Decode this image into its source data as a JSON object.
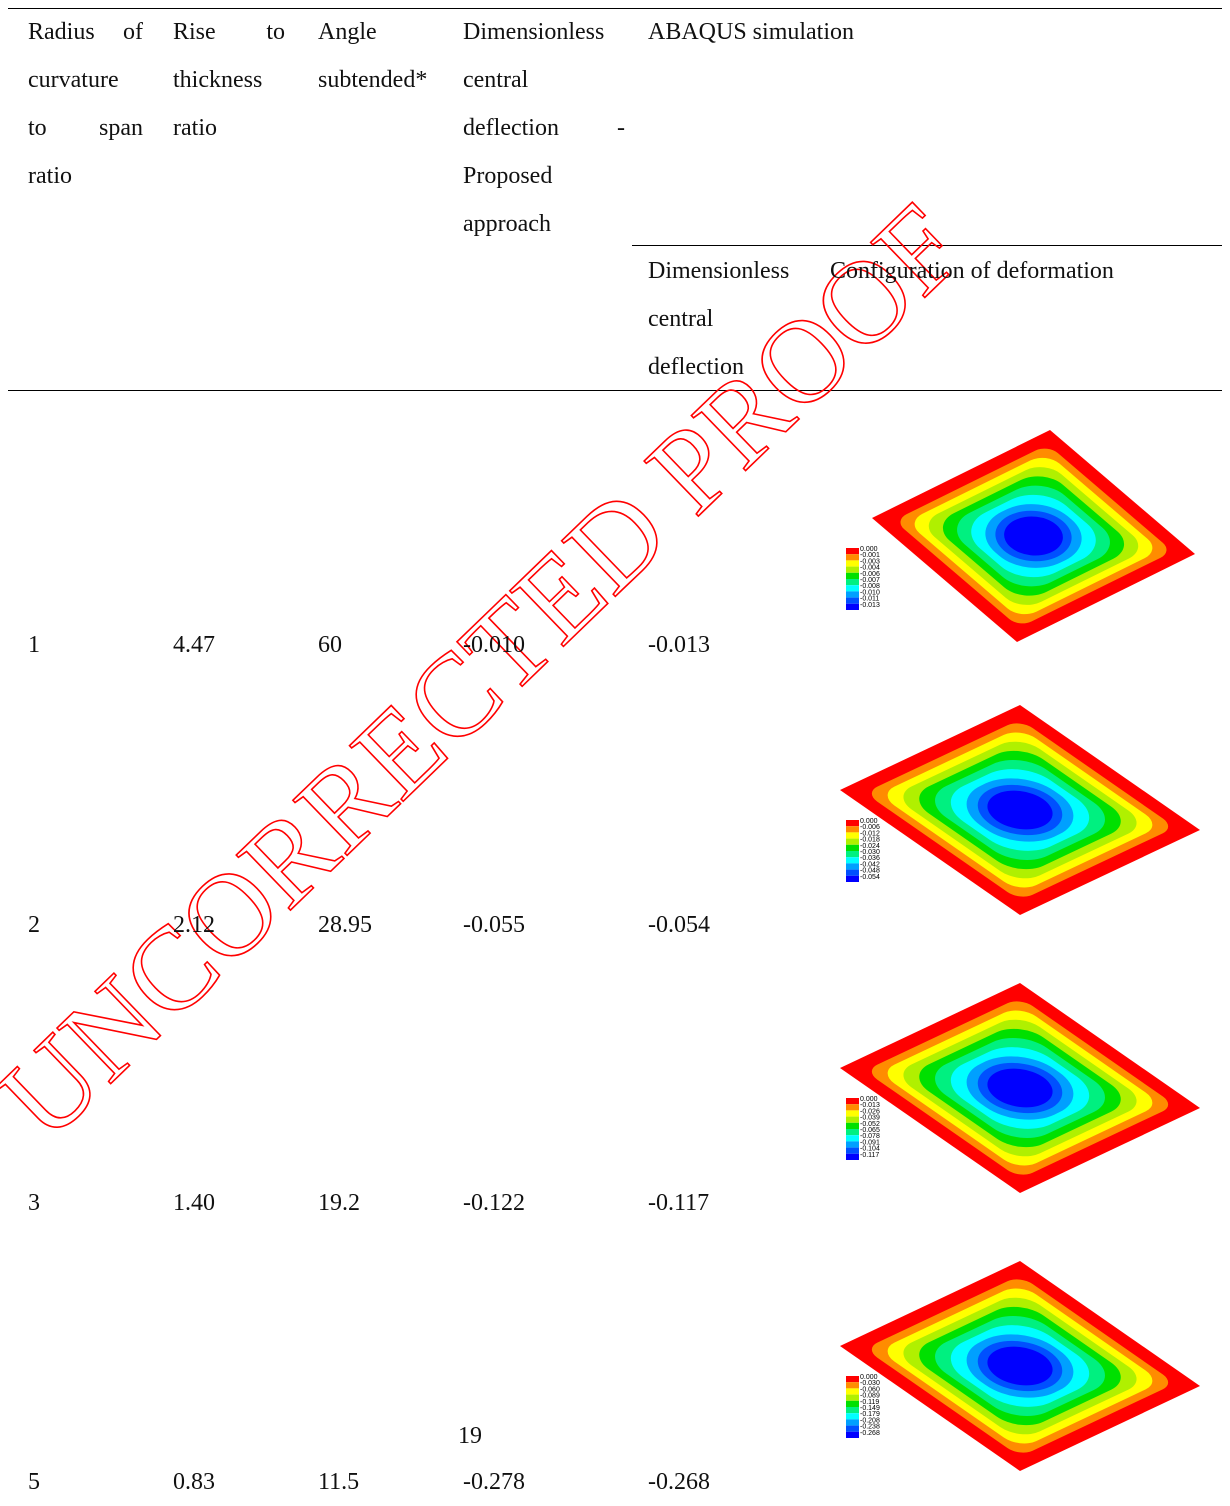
{
  "table": {
    "headers": [
      "Radius of curvature to span ratio",
      "Rise to thickness ratio",
      "Angle subtended*",
      "Dimensionless central deflection - Proposed approach",
      "ABAQUS simulation"
    ],
    "subheaders": [
      "Dimensionless central deflection",
      "Configuration of deformation"
    ],
    "rows": [
      [
        "1",
        "4.47",
        "60",
        "-0.010",
        "-0.013"
      ],
      [
        "2",
        "2.12",
        "28.95",
        "-0.055",
        "-0.054"
      ],
      [
        "3",
        "1.40",
        "19.2",
        "-0.122",
        "-0.117"
      ],
      [
        "5",
        "0.83",
        "11.5",
        "-0.278",
        "-0.268"
      ]
    ],
    "legends": [
      [
        "0.000",
        "-0.001",
        "-0.003",
        "-0.004",
        "-0.006",
        "-0.007",
        "-0.008",
        "-0.010",
        "-0.011",
        "-0.013"
      ],
      [
        "0.000",
        "-0.006",
        "-0.012",
        "-0.018",
        "-0.024",
        "-0.030",
        "-0.036",
        "-0.042",
        "-0.048",
        "-0.054"
      ],
      [
        "0.000",
        "-0.013",
        "-0.026",
        "-0.039",
        "-0.052",
        "-0.065",
        "-0.078",
        "-0.091",
        "-0.104",
        "-0.117"
      ],
      [
        "0.000",
        "-0.030",
        "-0.060",
        "-0.089",
        "-0.119",
        "-0.149",
        "-0.179",
        "-0.208",
        "-0.238",
        "-0.268"
      ]
    ]
  },
  "page_number": "19",
  "watermark": "UNCORRECTED PROOF"
}
